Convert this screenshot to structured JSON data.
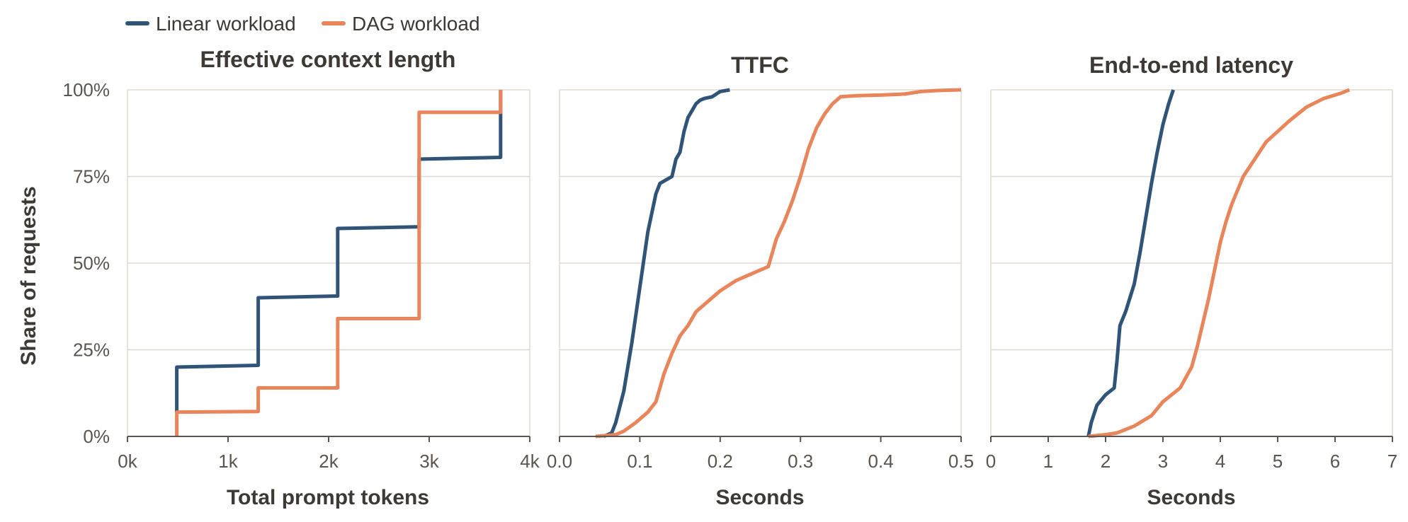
{
  "legend": {
    "items": [
      {
        "label": "Linear workload",
        "color": "#2f5478"
      },
      {
        "label": "DAG workload",
        "color": "#e8855a"
      }
    ]
  },
  "y_axis_label": "Share of requests",
  "chart_data": [
    {
      "type": "line",
      "title": "Effective context length",
      "xlabel": "Total prompt tokens",
      "ylabel": "Share of requests",
      "xlim": [
        0,
        4000
      ],
      "ylim": [
        0,
        100
      ],
      "x_ticks": [
        0,
        1000,
        2000,
        3000,
        4000
      ],
      "x_tick_labels": [
        "0k",
        "1k",
        "2k",
        "3k",
        "4k"
      ],
      "y_ticks": [
        0,
        25,
        50,
        75,
        100
      ],
      "y_tick_labels": [
        "0%",
        "25%",
        "50%",
        "75%",
        "100%"
      ],
      "grid": true,
      "series": [
        {
          "name": "Linear workload",
          "color": "#2f5478",
          "x": [
            490,
            490,
            1300,
            1300,
            2090,
            2090,
            2900,
            2900,
            3710,
            3710
          ],
          "y": [
            7,
            20,
            20.5,
            40,
            40.5,
            60,
            60.5,
            80,
            80.5,
            100
          ]
        },
        {
          "name": "DAG workload",
          "color": "#e8855a",
          "x": [
            490,
            490,
            1300,
            1300,
            2090,
            2090,
            2900,
            2900,
            3710,
            3710
          ],
          "y": [
            0,
            7,
            7.2,
            14,
            14,
            34,
            34,
            93.5,
            93.5,
            100
          ]
        }
      ]
    },
    {
      "type": "line",
      "title": "TTFC",
      "xlabel": "Seconds",
      "ylabel": "",
      "xlim": [
        0,
        0.5
      ],
      "ylim": [
        0,
        100
      ],
      "x_ticks": [
        0,
        0.1,
        0.2,
        0.3,
        0.4,
        0.5
      ],
      "x_tick_labels": [
        "0.0",
        "0.1",
        "0.2",
        "0.3",
        "0.4",
        "0.5"
      ],
      "y_ticks": [
        0,
        25,
        50,
        75,
        100
      ],
      "grid": true,
      "series": [
        {
          "name": "Linear workload",
          "color": "#2f5478",
          "x": [
            0.055,
            0.065,
            0.07,
            0.08,
            0.09,
            0.1,
            0.11,
            0.12,
            0.125,
            0.14,
            0.145,
            0.15,
            0.155,
            0.16,
            0.17,
            0.175,
            0.18,
            0.19,
            0.2,
            0.212
          ],
          "y": [
            0,
            1,
            4,
            13,
            27,
            43,
            59,
            70,
            73,
            75,
            80,
            82,
            88,
            92,
            96,
            97,
            97.5,
            98,
            99.5,
            100
          ]
        },
        {
          "name": "DAG workload",
          "color": "#e8855a",
          "x": [
            0.045,
            0.07,
            0.08,
            0.095,
            0.11,
            0.12,
            0.13,
            0.14,
            0.15,
            0.16,
            0.17,
            0.18,
            0.2,
            0.22,
            0.24,
            0.26,
            0.265,
            0.27,
            0.28,
            0.29,
            0.3,
            0.31,
            0.32,
            0.33,
            0.34,
            0.35,
            0.37,
            0.4,
            0.43,
            0.45,
            0.47,
            0.5
          ],
          "y": [
            0,
            0.5,
            1.5,
            4,
            7,
            10,
            18,
            24,
            29,
            32,
            36,
            38,
            42,
            45,
            47,
            49,
            53,
            57,
            62,
            68,
            75,
            83,
            89,
            93,
            96,
            98,
            98.3,
            98.5,
            98.8,
            99.5,
            99.8,
            100
          ]
        }
      ]
    },
    {
      "type": "line",
      "title": "End-to-end latency",
      "xlabel": "Seconds",
      "ylabel": "",
      "xlim": [
        0,
        7
      ],
      "ylim": [
        0,
        100
      ],
      "x_ticks": [
        0,
        1,
        2,
        3,
        4,
        5,
        6,
        7
      ],
      "x_tick_labels": [
        "0",
        "1",
        "2",
        "3",
        "4",
        "5",
        "6",
        "7"
      ],
      "y_ticks": [
        0,
        25,
        50,
        75,
        100
      ],
      "grid": true,
      "series": [
        {
          "name": "Linear workload",
          "color": "#2f5478",
          "x": [
            1.7,
            1.75,
            1.85,
            2.0,
            2.15,
            2.2,
            2.25,
            2.35,
            2.5,
            2.6,
            2.7,
            2.8,
            2.9,
            3.0,
            3.1,
            3.18
          ],
          "y": [
            0,
            4,
            9,
            12,
            14,
            22,
            32,
            36,
            44,
            53,
            63,
            73,
            82,
            90,
            96,
            100
          ]
        },
        {
          "name": "DAG workload",
          "color": "#e8855a",
          "x": [
            1.7,
            2.0,
            2.2,
            2.5,
            2.8,
            3.0,
            3.3,
            3.5,
            3.6,
            3.7,
            3.8,
            3.9,
            4.0,
            4.1,
            4.2,
            4.3,
            4.4,
            4.6,
            4.8,
            5.0,
            5.2,
            5.5,
            5.8,
            6.1,
            6.25
          ],
          "y": [
            0,
            0.5,
            1,
            3,
            6,
            10,
            14,
            20,
            26,
            33,
            40,
            48,
            56,
            62,
            67,
            71,
            75,
            80,
            85,
            88,
            91,
            95,
            97.5,
            99,
            100
          ]
        }
      ]
    }
  ]
}
